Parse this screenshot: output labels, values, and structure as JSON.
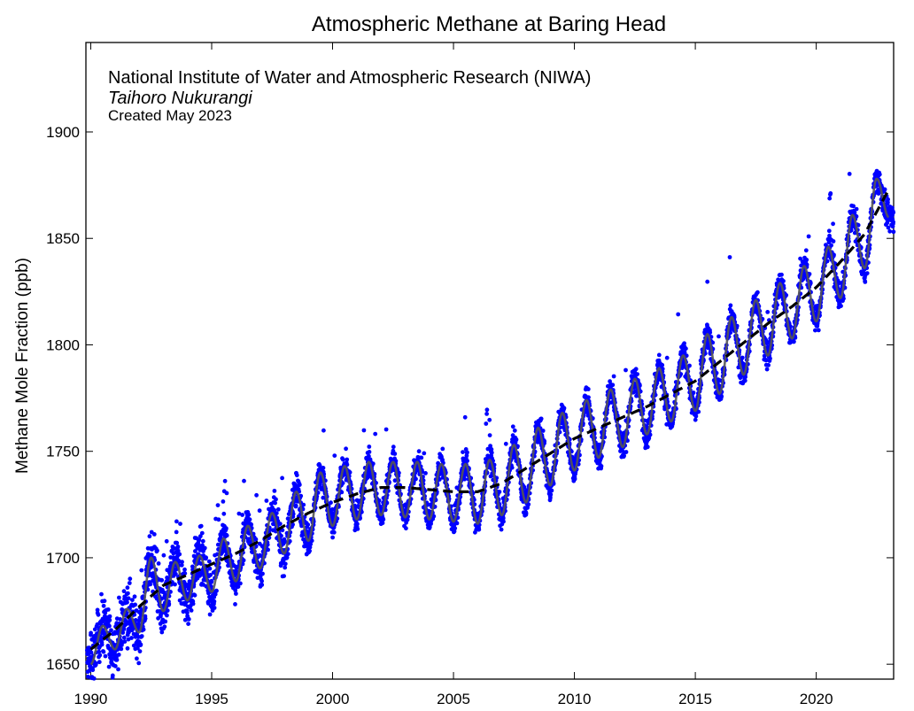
{
  "chart_data": {
    "type": "scatter",
    "title": "Atmospheric Methane at Baring Head",
    "credits": {
      "organisation": "National Institute of Water and Atmospheric Research (NIWA)",
      "maori_name": "Taihoro Nukurangi",
      "created": "Created May 2023"
    },
    "xlabel": "",
    "ylabel": "Methane Mole Fraction (ppb)",
    "xlim": [
      1989.8,
      2023.2
    ],
    "ylim": [
      1643,
      1942
    ],
    "xticks": [
      1990,
      1995,
      2000,
      2005,
      2010,
      2015,
      2020
    ],
    "yticks": [
      1650,
      1700,
      1750,
      1800,
      1850,
      1900
    ],
    "grid": false,
    "legend": "none",
    "colors": {
      "observations": "#0000ff",
      "smoothed_fit": "#555555",
      "trend": "#000000"
    },
    "series": [
      {
        "style": "dashed",
        "x": [
          1990.0,
          1991.0,
          1992.0,
          1993.0,
          1994.0,
          1995.0,
          1996.0,
          1997.0,
          1998.0,
          1999.0,
          2000.0,
          2001.0,
          2002.0,
          2003.0,
          2004.0,
          2005.0,
          2006.0,
          2007.0,
          2008.0,
          2009.0,
          2010.0,
          2011.0,
          2012.0,
          2013.0,
          2014.0,
          2015.0,
          2016.0,
          2017.0,
          2018.0,
          2019.0,
          2020.0,
          2021.0,
          2022.0,
          2023.0
        ],
        "values": [
          1657,
          1666,
          1677,
          1687,
          1692,
          1697,
          1702,
          1708,
          1715,
          1721,
          1726,
          1730,
          1733,
          1733,
          1732,
          1731,
          1731,
          1735,
          1742,
          1749,
          1756,
          1761,
          1766,
          1771,
          1777,
          1783,
          1792,
          1801,
          1810,
          1818,
          1827,
          1839,
          1852,
          1873
        ]
      },
      {
        "style": "solid",
        "x": [
          1990.0,
          1990.5,
          1991.0,
          1991.5,
          1992.0,
          1992.5,
          1993.0,
          1993.5,
          1994.0,
          1994.5,
          1995.0,
          1995.5,
          1996.0,
          1996.5,
          1997.0,
          1997.5,
          1998.0,
          1998.5,
          1999.0,
          1999.5,
          2000.0,
          2000.5,
          2001.0,
          2001.5,
          2002.0,
          2002.5,
          2003.0,
          2003.5,
          2004.0,
          2004.5,
          2005.0,
          2005.5,
          2006.0,
          2006.5,
          2007.0,
          2007.5,
          2008.0,
          2008.5,
          2009.0,
          2009.5,
          2010.0,
          2010.5,
          2011.0,
          2011.5,
          2012.0,
          2012.5,
          2013.0,
          2013.5,
          2014.0,
          2014.5,
          2015.0,
          2015.5,
          2016.0,
          2016.5,
          2017.0,
          2017.5,
          2018.0,
          2018.5,
          2019.0,
          2019.5,
          2020.0,
          2020.5,
          2021.0,
          2021.5,
          2022.0,
          2022.5,
          2023.0
        ],
        "values": [
          1650,
          1668,
          1657,
          1676,
          1665,
          1700,
          1675,
          1698,
          1680,
          1701,
          1684,
          1709,
          1689,
          1715,
          1695,
          1721,
          1702,
          1731,
          1708,
          1740,
          1715,
          1743,
          1718,
          1745,
          1720,
          1745,
          1719,
          1745,
          1718,
          1744,
          1717,
          1744,
          1716,
          1746,
          1720,
          1753,
          1726,
          1761,
          1734,
          1768,
          1741,
          1774,
          1747,
          1779,
          1752,
          1784,
          1758,
          1789,
          1764,
          1795,
          1769,
          1805,
          1777,
          1813,
          1786,
          1821,
          1795,
          1829,
          1803,
          1837,
          1811,
          1846,
          1822,
          1861,
          1836,
          1878,
          1860
        ]
      }
    ]
  }
}
